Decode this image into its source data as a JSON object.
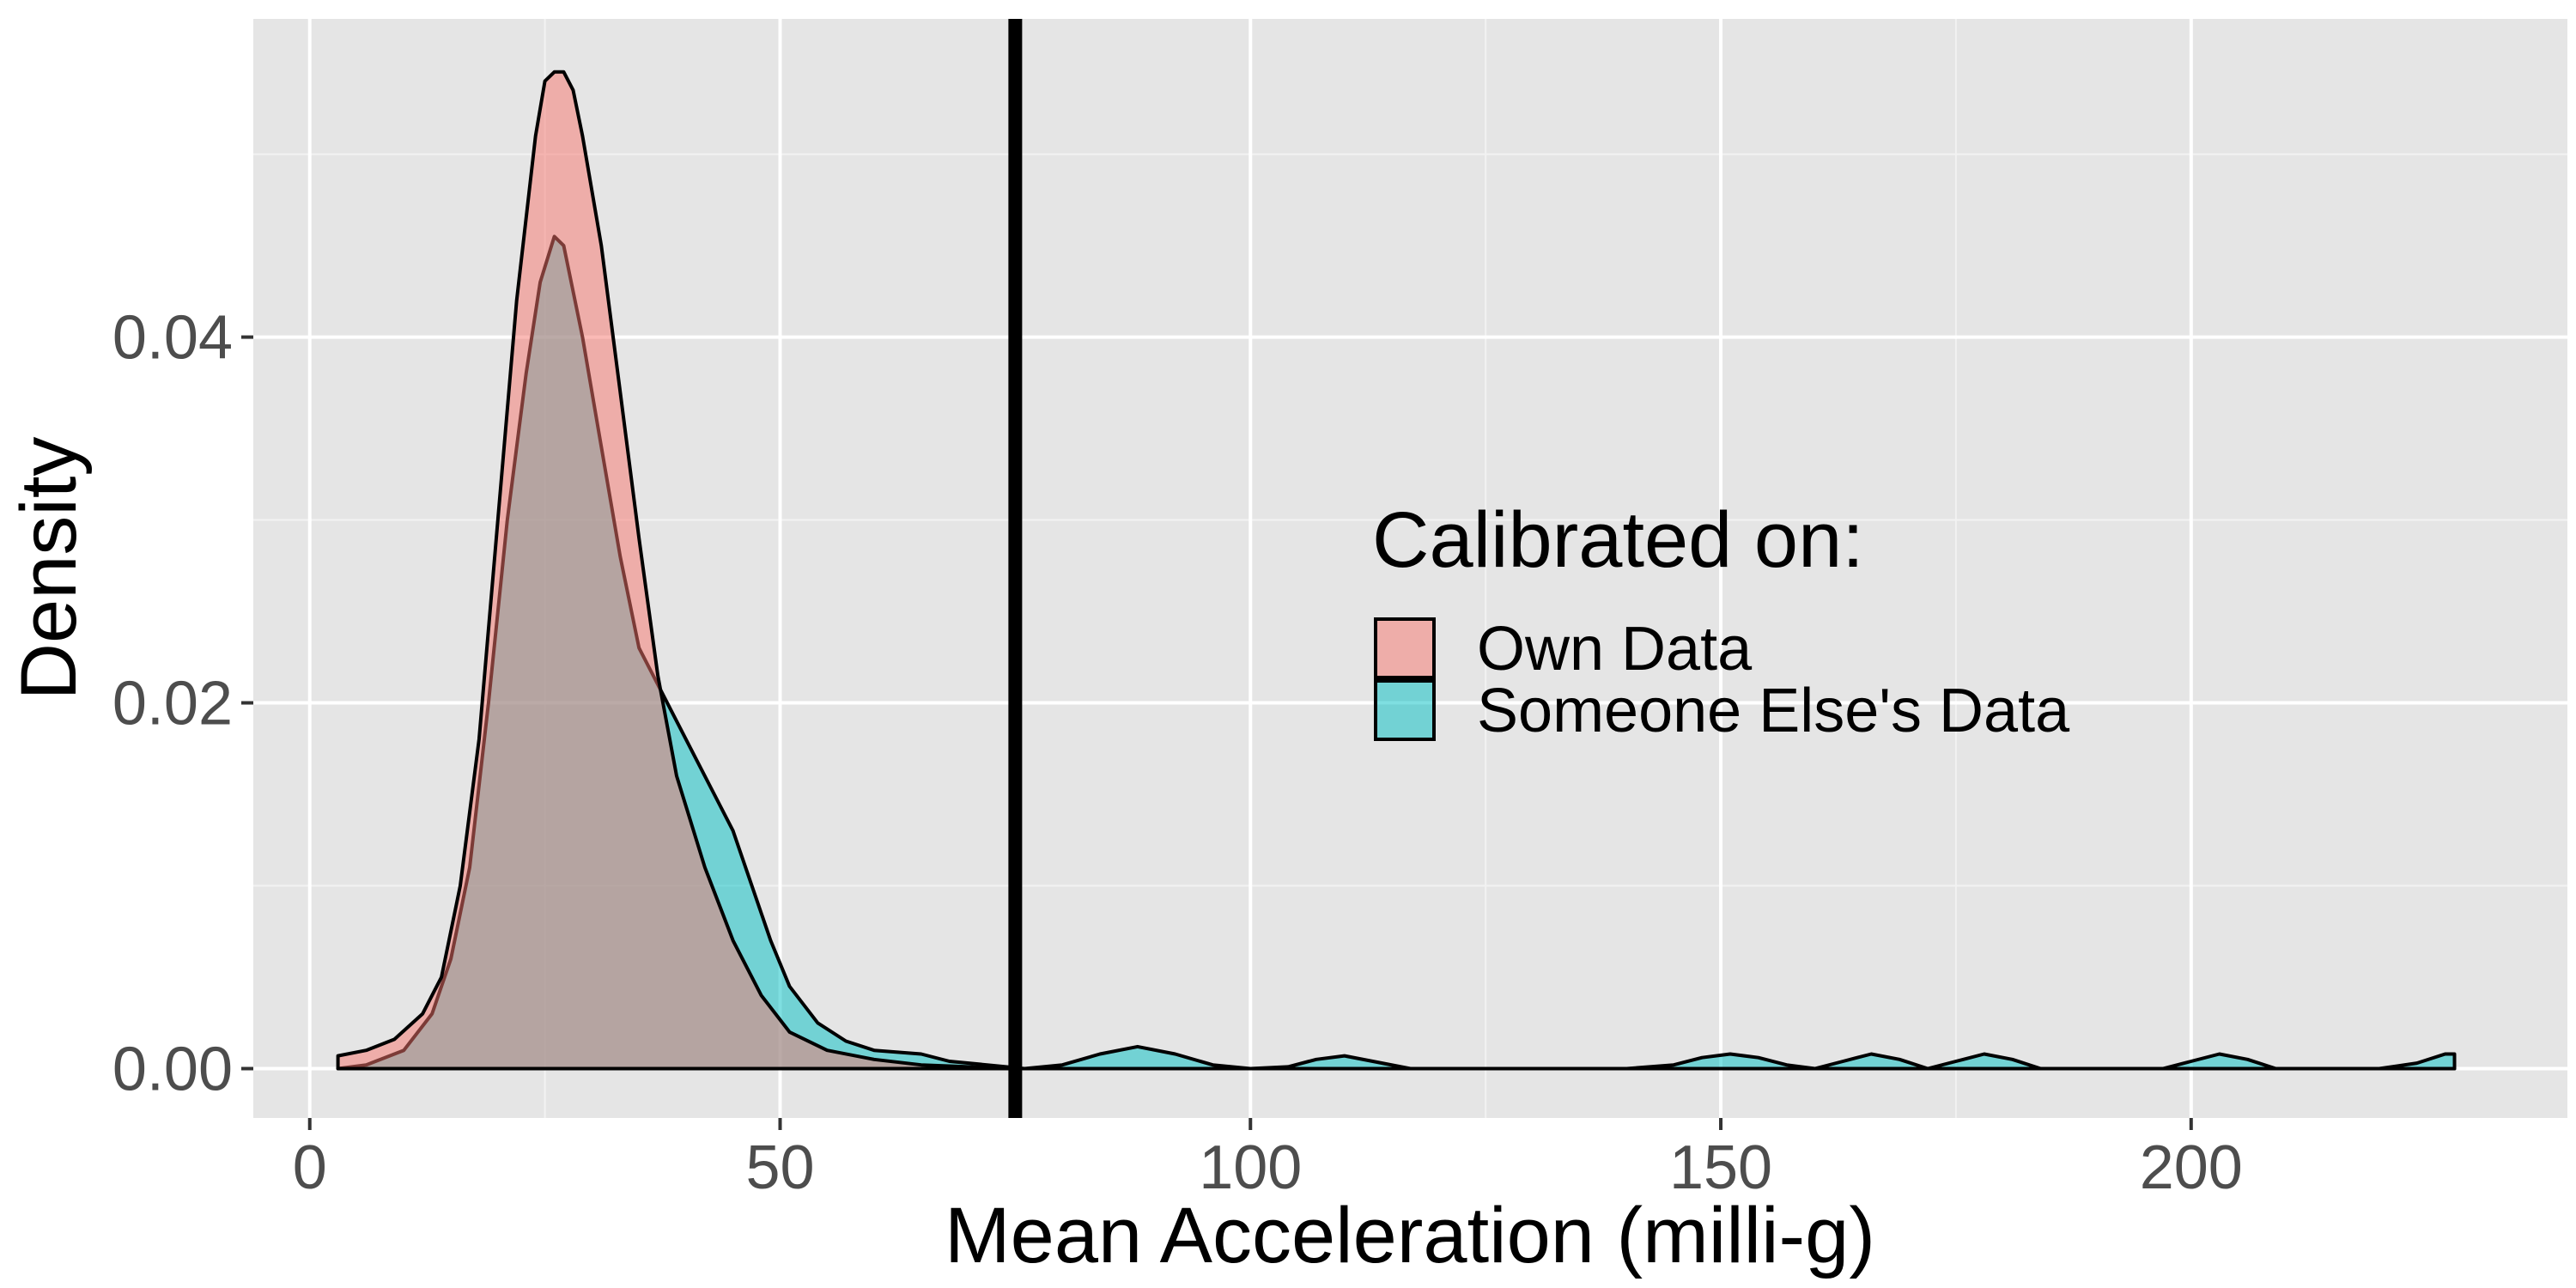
{
  "chart_data": {
    "type": "area",
    "xlabel": "Mean Acceleration (milli-g)",
    "ylabel": "Density",
    "xlim": [
      -6,
      240
    ],
    "ylim": [
      -0.0027,
      0.0574
    ],
    "x_ticks": [
      0,
      50,
      100,
      150,
      200
    ],
    "x_tick_labels": [
      "0",
      "50",
      "100",
      "150",
      "200"
    ],
    "y_ticks": [
      0.0,
      0.02,
      0.04
    ],
    "y_tick_labels": [
      "0.00",
      "0.02",
      "0.04"
    ],
    "grid": true,
    "background": "#e5e5e5",
    "reference_line": {
      "x": 75,
      "color": "#000000"
    },
    "legend": {
      "title": "Calibrated on:",
      "placement": "right-center",
      "entries": [
        {
          "name": "Own Data",
          "color": "#F8766D"
        },
        {
          "name": "Someone Else's Data",
          "color": "#00BFC4"
        }
      ]
    },
    "series": [
      {
        "name": "Own Data",
        "color": "#F8766D",
        "points": [
          [
            3,
            0.0007
          ],
          [
            6,
            0.001
          ],
          [
            9,
            0.0016
          ],
          [
            12,
            0.003
          ],
          [
            14,
            0.005
          ],
          [
            16,
            0.01
          ],
          [
            18,
            0.018
          ],
          [
            20,
            0.03
          ],
          [
            22,
            0.042
          ],
          [
            24,
            0.051
          ],
          [
            25,
            0.054
          ],
          [
            26,
            0.0545
          ],
          [
            27,
            0.0545
          ],
          [
            28,
            0.0535
          ],
          [
            29,
            0.051
          ],
          [
            31,
            0.045
          ],
          [
            33,
            0.037
          ],
          [
            35,
            0.029
          ],
          [
            37,
            0.0215
          ],
          [
            39,
            0.016
          ],
          [
            42,
            0.011
          ],
          [
            45,
            0.007
          ],
          [
            48,
            0.004
          ],
          [
            51,
            0.002
          ],
          [
            55,
            0.001
          ],
          [
            60,
            0.0005
          ],
          [
            65,
            0.0002
          ],
          [
            70,
            0.0001
          ],
          [
            75,
            0.0
          ],
          [
            228,
            0.0
          ]
        ]
      },
      {
        "name": "Someone Else's Data",
        "color": "#00BFC4",
        "points": [
          [
            3,
            0.0
          ],
          [
            6,
            0.0002
          ],
          [
            10,
            0.001
          ],
          [
            13,
            0.003
          ],
          [
            15,
            0.006
          ],
          [
            17,
            0.011
          ],
          [
            19,
            0.02
          ],
          [
            21,
            0.03
          ],
          [
            23,
            0.038
          ],
          [
            24.5,
            0.043
          ],
          [
            26,
            0.0455
          ],
          [
            27,
            0.045
          ],
          [
            29,
            0.04
          ],
          [
            31,
            0.034
          ],
          [
            33,
            0.028
          ],
          [
            35,
            0.023
          ],
          [
            37,
            0.021
          ],
          [
            40,
            0.018
          ],
          [
            43,
            0.015
          ],
          [
            45,
            0.013
          ],
          [
            47,
            0.01
          ],
          [
            49,
            0.007
          ],
          [
            51,
            0.0045
          ],
          [
            54,
            0.0025
          ],
          [
            57,
            0.0015
          ],
          [
            60,
            0.001
          ],
          [
            65,
            0.0008
          ],
          [
            68,
            0.0004
          ],
          [
            72,
            0.0002
          ],
          [
            76,
            0.0
          ],
          [
            80,
            0.0002
          ],
          [
            84,
            0.0008
          ],
          [
            88,
            0.0012
          ],
          [
            92,
            0.0008
          ],
          [
            96,
            0.0002
          ],
          [
            100,
            0.0
          ],
          [
            104,
            0.0001
          ],
          [
            107,
            0.0005
          ],
          [
            110,
            0.0007
          ],
          [
            113,
            0.0004
          ],
          [
            117,
            0.0
          ],
          [
            140,
            0.0
          ],
          [
            145,
            0.0002
          ],
          [
            148,
            0.0006
          ],
          [
            151,
            0.0008
          ],
          [
            154,
            0.0006
          ],
          [
            157,
            0.0002
          ],
          [
            160,
            0.0
          ],
          [
            163,
            0.0004
          ],
          [
            166,
            0.0008
          ],
          [
            169,
            0.0005
          ],
          [
            172,
            0.0
          ],
          [
            175,
            0.0004
          ],
          [
            178,
            0.0008
          ],
          [
            181,
            0.0005
          ],
          [
            184,
            0.0
          ],
          [
            197,
            0.0
          ],
          [
            200,
            0.0004
          ],
          [
            203,
            0.0008
          ],
          [
            206,
            0.0005
          ],
          [
            209,
            0.0
          ],
          [
            220,
            0.0
          ],
          [
            224,
            0.0003
          ],
          [
            227,
            0.0008
          ],
          [
            228,
            0.0008
          ]
        ]
      }
    ]
  }
}
